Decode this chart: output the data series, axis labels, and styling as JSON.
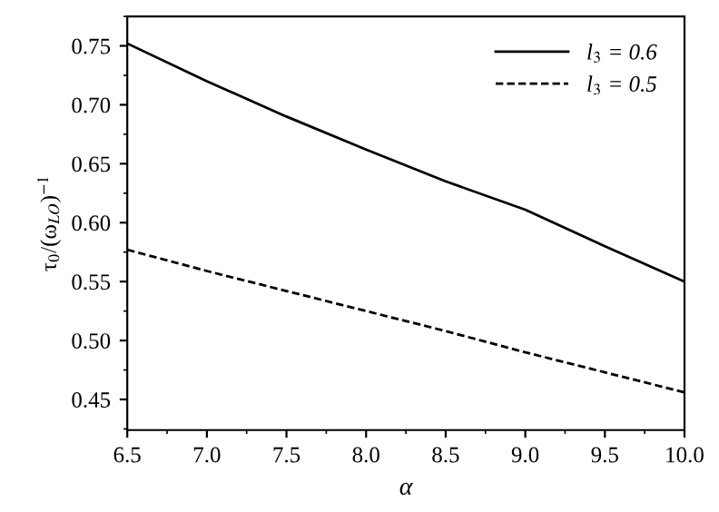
{
  "chart_data": {
    "type": "line",
    "xlabel": "α",
    "ylabel": "τ$_{0}$/(ω$_{LO}$)$^{−1}$",
    "x": [
      6.5,
      7.0,
      7.5,
      8.0,
      8.5,
      9.0,
      9.5,
      10.0
    ],
    "series": [
      {
        "name": "l$_{3}$ = 0.6",
        "color": "#000000",
        "line_style": "solid",
        "values": [
          0.752,
          0.72,
          0.69,
          0.662,
          0.635,
          0.611,
          0.58,
          0.55
        ]
      },
      {
        "name": "l$_{3}$ = 0.5",
        "color": "#000000",
        "line_style": "dashed",
        "values": [
          0.577,
          0.559,
          0.542,
          0.525,
          0.508,
          0.49,
          0.473,
          0.456
        ]
      }
    ],
    "xlim": [
      6.5,
      10.0
    ],
    "xticks": [
      {
        "value": 6.5,
        "label": "6.5"
      },
      {
        "value": 7.0,
        "label": "7.0"
      },
      {
        "value": 7.5,
        "label": "7.5"
      },
      {
        "value": 8.0,
        "label": "8.0"
      },
      {
        "value": 8.5,
        "label": "8.5"
      },
      {
        "value": 9.0,
        "label": "9.0"
      },
      {
        "value": 9.5,
        "label": "9.5"
      },
      {
        "value": 10.0,
        "label": "10.0"
      }
    ],
    "ylim": [
      0.424,
      0.775
    ],
    "yticks": [
      {
        "value": 0.45,
        "label": "0.45"
      },
      {
        "value": 0.5,
        "label": "0.50"
      },
      {
        "value": 0.55,
        "label": "0.55"
      },
      {
        "value": 0.6,
        "label": "0.60"
      },
      {
        "value": 0.65,
        "label": "0.65"
      },
      {
        "value": 0.7,
        "label": "0.70"
      },
      {
        "value": 0.75,
        "label": "0.75"
      }
    ],
    "grid": false,
    "legend": "top right",
    "marker": "none"
  }
}
